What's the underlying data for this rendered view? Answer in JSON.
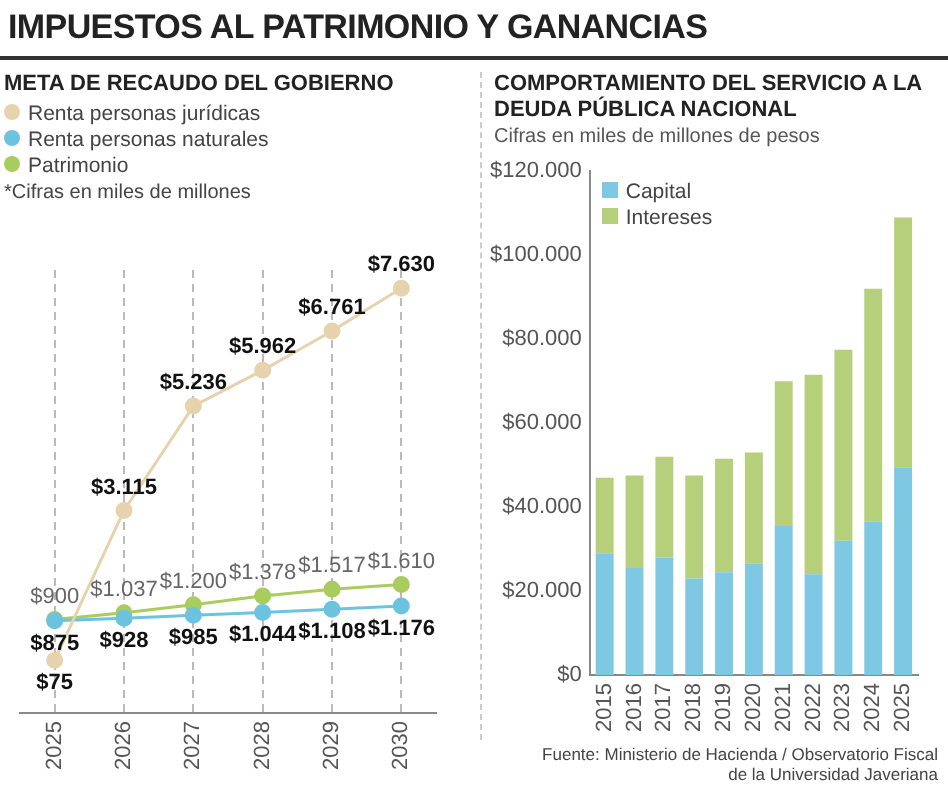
{
  "chart_data": [
    {
      "type": "line",
      "title": "IMPUESTOS AL PATRIMONIO Y GANANCIAS",
      "subtitle": "META DE RECAUDO DEL GOBIERNO",
      "categories": [
        "2025",
        "2026",
        "2027",
        "2028",
        "2029",
        "2030"
      ],
      "series": [
        {
          "name": "Renta personas jurídicas",
          "color": "#e6d2ac",
          "values": [
            75,
            3115,
            5236,
            5962,
            6761,
            7630
          ],
          "value_labels": [
            "$75",
            "$3.115",
            "$5.236",
            "$5.962",
            "$6.761",
            "$7.630"
          ]
        },
        {
          "name": "Renta personas naturales",
          "color": "#6cc3e0",
          "values": [
            875,
            928,
            985,
            1044,
            1108,
            1176
          ],
          "value_labels": [
            "$875",
            "$928",
            "$985",
            "$1.044",
            "$1.108",
            "$1.176"
          ]
        },
        {
          "name": "Patrimonio",
          "color": "#a9cc5e",
          "values": [
            900,
            1037,
            1200,
            1378,
            1517,
            1610
          ],
          "value_labels": [
            "$900",
            "$1.037",
            "$1.200",
            "$1.378",
            "$1.517",
            "$1.610"
          ]
        }
      ],
      "annotations": [
        "*Cifras en miles de millones"
      ],
      "legend": "top left",
      "grid": "x",
      "marker": "circle",
      "tick_labels": "x"
    },
    {
      "type": "bar",
      "title": "COMPORTAMIENTO DEL SERVICIO A LA DEUDA PÚBLICA NACIONAL",
      "subtitle": "Cifras en miles de millones de pesos",
      "categories": [
        "2015",
        "2016",
        "2017",
        "2018",
        "2019",
        "2020",
        "2021",
        "2022",
        "2023",
        "2024",
        "2025"
      ],
      "series": [
        {
          "name": "Capital",
          "color": "#7ec8e3",
          "values": [
            29000,
            25500,
            28000,
            23000,
            24500,
            26500,
            35500,
            24000,
            32000,
            36500,
            49500
          ]
        },
        {
          "name": "Intereses",
          "color": "#b5cf7a",
          "values": [
            18000,
            22000,
            24000,
            24500,
            27000,
            26500,
            34500,
            47500,
            45500,
            55500,
            59500
          ]
        }
      ],
      "stacked": true,
      "ylim": [
        0,
        120000
      ],
      "yticks": [
        {
          "value": 0,
          "label": "$0"
        },
        {
          "value": 20000,
          "label": "$20.000"
        },
        {
          "value": 40000,
          "label": "$40.000"
        },
        {
          "value": 60000,
          "label": "$60.000"
        },
        {
          "value": 80000,
          "label": "$80.000"
        },
        {
          "value": 100000,
          "label": "$100.000"
        },
        {
          "value": 120000,
          "label": "$120.000"
        }
      ],
      "annotations": [
        "Fuente: Ministerio de Hacienda / Observatorio Fiscal de la Universidad Javeriana"
      ],
      "legend": "top left",
      "grid": false
    }
  ]
}
